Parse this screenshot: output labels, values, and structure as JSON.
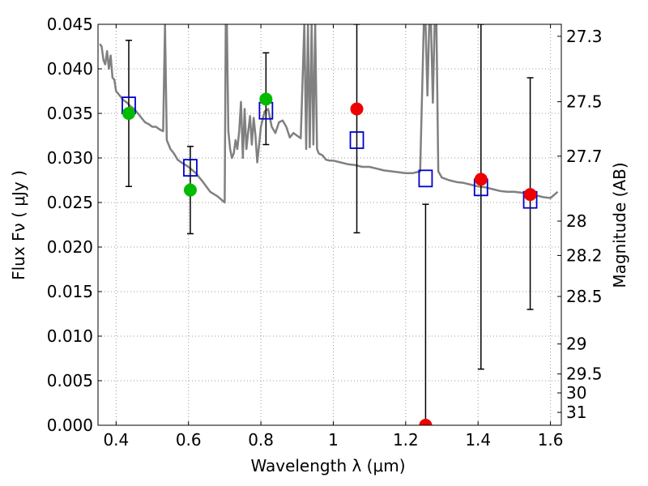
{
  "chart_data": {
    "type": "scatter",
    "xlabel": "Wavelength  λ (μm)",
    "ylabel": "Flux  Fν  ( μJy )",
    "y2label": "Magnitude (AB)",
    "xlim": [
      0.35,
      1.63
    ],
    "ylim": [
      0.0,
      0.045
    ],
    "grid": true,
    "x_ticks": [
      0.4,
      0.6,
      0.8,
      1.0,
      1.2,
      1.4,
      1.6
    ],
    "x_tick_labels": [
      "0.4",
      "0.6",
      "0.8",
      "1",
      "1.2",
      "1.4",
      "1.6"
    ],
    "y_ticks": [
      0.0,
      0.005,
      0.01,
      0.015,
      0.02,
      0.025,
      0.03,
      0.035,
      0.04,
      0.045
    ],
    "y_tick_labels": [
      "0.000",
      "0.005",
      "0.010",
      "0.015",
      "0.020",
      "0.025",
      "0.030",
      "0.035",
      "0.040",
      "0.045"
    ],
    "mag_ticks": [
      27.3,
      27.5,
      27.7,
      28,
      28.2,
      28.5,
      29,
      29.5,
      30,
      31
    ],
    "mag_tick_labels": [
      "27.3",
      "27.5",
      "27.7",
      "28",
      "28.2",
      "28.5",
      "29",
      "29.5",
      "30",
      "31"
    ],
    "colors": {
      "template": "#808080",
      "model": "#0000cc",
      "green": "#00bb00",
      "red": "#ee0000",
      "errorbar": "#000000",
      "grid": "#999999"
    },
    "series": [
      {
        "name": "template_sed",
        "kind": "line",
        "x": [
          0.355,
          0.36,
          0.365,
          0.37,
          0.375,
          0.38,
          0.385,
          0.39,
          0.395,
          0.4,
          0.41,
          0.42,
          0.43,
          0.44,
          0.45,
          0.46,
          0.47,
          0.48,
          0.49,
          0.5,
          0.51,
          0.52,
          0.53,
          0.535,
          0.54,
          0.55,
          0.56,
          0.57,
          0.58,
          0.6,
          0.62,
          0.64,
          0.66,
          0.68,
          0.7,
          0.703,
          0.706,
          0.71,
          0.715,
          0.72,
          0.725,
          0.73,
          0.735,
          0.74,
          0.745,
          0.75,
          0.755,
          0.76,
          0.765,
          0.77,
          0.775,
          0.78,
          0.785,
          0.79,
          0.795,
          0.8,
          0.81,
          0.82,
          0.83,
          0.84,
          0.85,
          0.86,
          0.87,
          0.88,
          0.89,
          0.9,
          0.91,
          0.92,
          0.925,
          0.93,
          0.935,
          0.94,
          0.945,
          0.95,
          0.955,
          0.96,
          0.97,
          0.98,
          0.99,
          1.0,
          1.02,
          1.04,
          1.06,
          1.08,
          1.1,
          1.12,
          1.14,
          1.16,
          1.18,
          1.2,
          1.22,
          1.24,
          1.25,
          1.255,
          1.26,
          1.265,
          1.27,
          1.275,
          1.28,
          1.285,
          1.29,
          1.3,
          1.32,
          1.34,
          1.36,
          1.38,
          1.4,
          1.42,
          1.44,
          1.46,
          1.48,
          1.5,
          1.52,
          1.54,
          1.56,
          1.58,
          1.6,
          1.62
        ],
        "y": [
          0.0428,
          0.0425,
          0.041,
          0.0405,
          0.042,
          0.04,
          0.0415,
          0.039,
          0.0388,
          0.0375,
          0.037,
          0.0365,
          0.0362,
          0.0358,
          0.0355,
          0.035,
          0.0345,
          0.034,
          0.0338,
          0.0335,
          0.0335,
          0.0332,
          0.033,
          0.045,
          0.032,
          0.031,
          0.0305,
          0.0298,
          0.0295,
          0.029,
          0.0283,
          0.0273,
          0.0262,
          0.0257,
          0.025,
          0.045,
          0.045,
          0.033,
          0.031,
          0.03,
          0.0305,
          0.032,
          0.031,
          0.033,
          0.0363,
          0.03,
          0.0355,
          0.031,
          0.033,
          0.0347,
          0.0315,
          0.0345,
          0.0325,
          0.0295,
          0.0315,
          0.0335,
          0.0352,
          0.0355,
          0.0335,
          0.0328,
          0.034,
          0.0342,
          0.0335,
          0.0323,
          0.0328,
          0.0325,
          0.0322,
          0.045,
          0.031,
          0.045,
          0.0312,
          0.045,
          0.0315,
          0.045,
          0.031,
          0.0305,
          0.0303,
          0.0298,
          0.0297,
          0.0297,
          0.0295,
          0.0293,
          0.0292,
          0.029,
          0.029,
          0.0288,
          0.0286,
          0.0285,
          0.0284,
          0.0283,
          0.0283,
          0.0285,
          0.045,
          0.045,
          0.037,
          0.045,
          0.045,
          0.0362,
          0.045,
          0.045,
          0.0285,
          0.0278,
          0.0275,
          0.0273,
          0.0272,
          0.027,
          0.0268,
          0.0267,
          0.0265,
          0.0263,
          0.0262,
          0.0262,
          0.0261,
          0.026,
          0.0258,
          0.0256,
          0.0255,
          0.0262
        ]
      },
      {
        "name": "model_photometry",
        "kind": "open_square",
        "x": [
          0.435,
          0.605,
          0.814,
          1.065,
          1.255,
          1.408,
          1.544
        ],
        "y": [
          0.0359,
          0.0289,
          0.0353,
          0.032,
          0.0277,
          0.0267,
          0.0253
        ]
      },
      {
        "name": "observed_green",
        "kind": "filled_circle_green",
        "x": [
          0.435,
          0.605,
          0.814
        ],
        "y": [
          0.035,
          0.0264,
          0.0366
        ]
      },
      {
        "name": "observed_red",
        "kind": "filled_circle_red",
        "x": [
          1.065,
          1.255,
          1.408,
          1.544
        ],
        "y": [
          0.0355,
          0.0,
          0.0276,
          0.0259
        ]
      },
      {
        "name": "error_bars",
        "kind": "errorbar",
        "x": [
          0.435,
          0.605,
          0.814,
          1.065,
          1.255,
          1.408,
          1.544
        ],
        "ylow": [
          0.0268,
          0.0215,
          0.0315,
          0.0216,
          0.0,
          0.0063,
          0.013
        ],
        "yhigh": [
          0.0432,
          0.0313,
          0.0418,
          0.045,
          0.0248,
          0.045,
          0.039
        ]
      }
    ]
  }
}
